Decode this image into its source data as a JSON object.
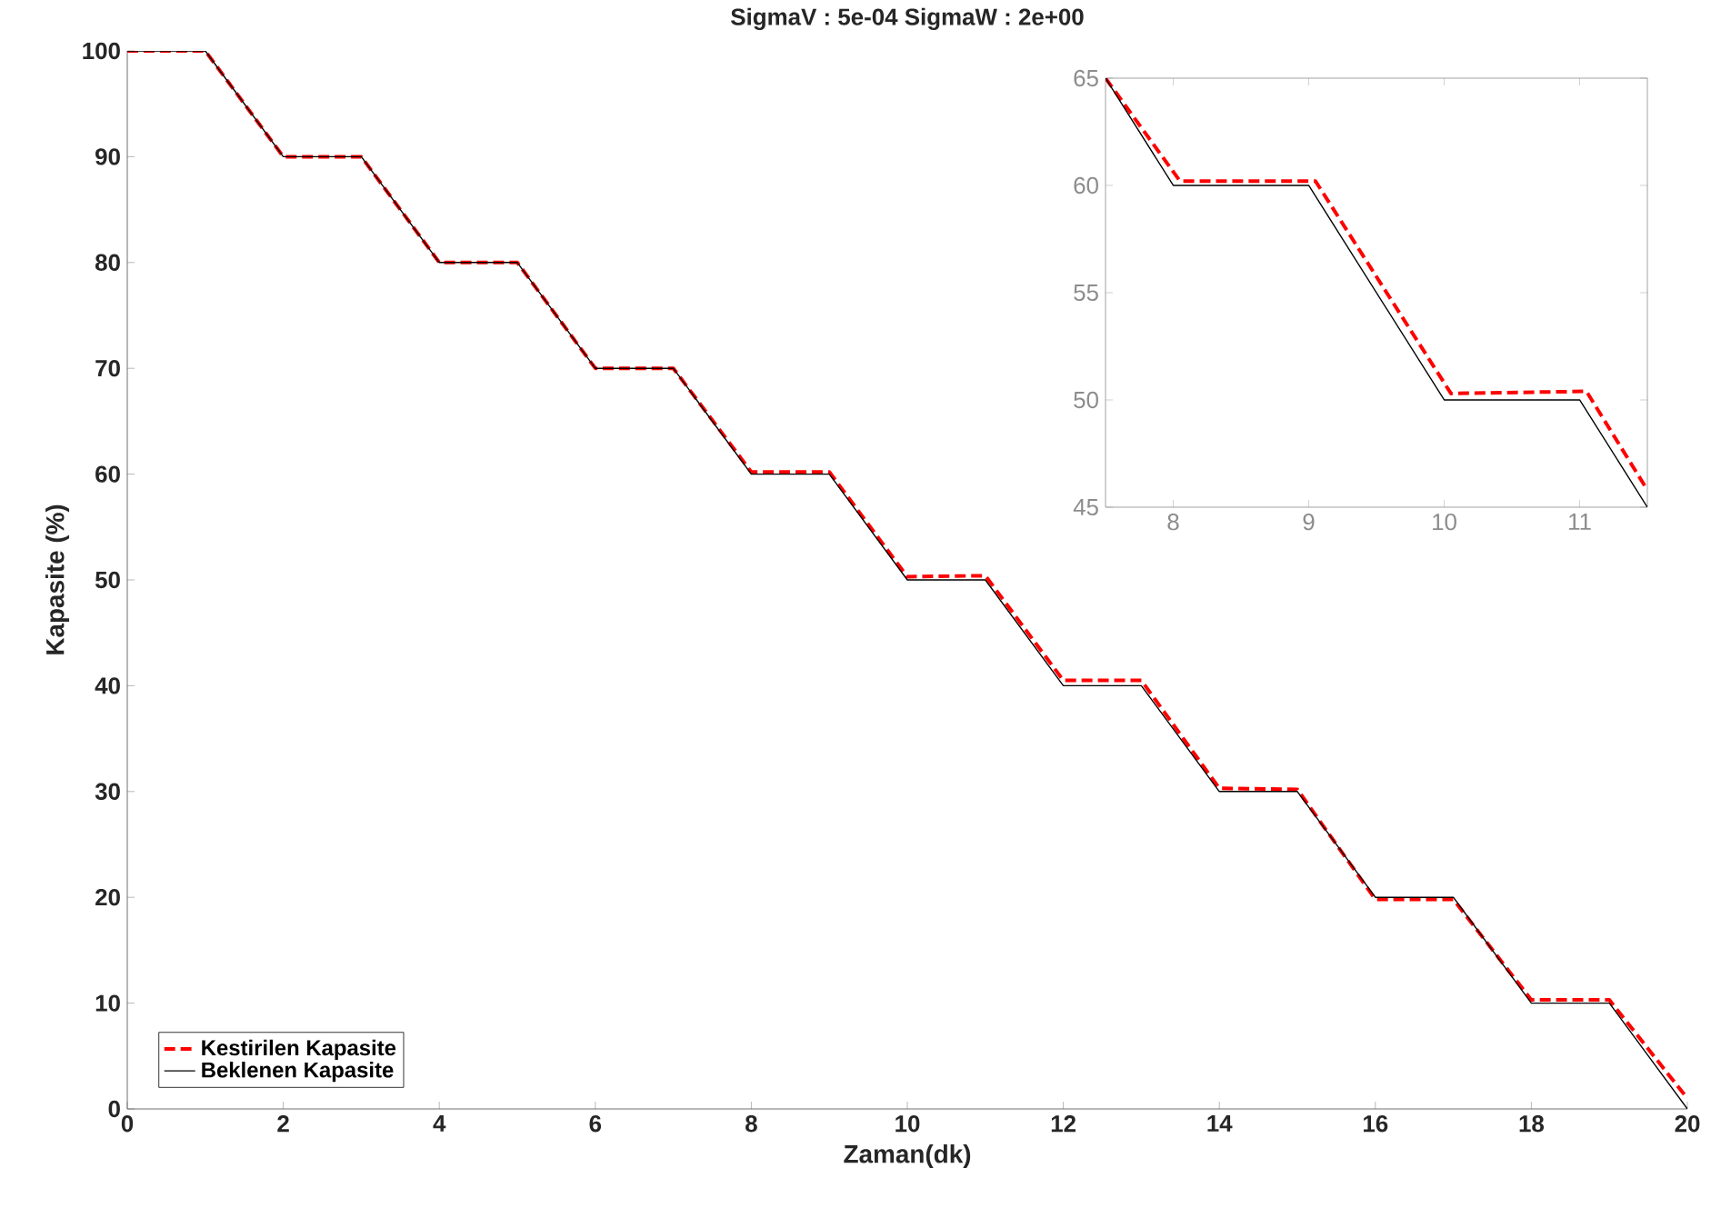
{
  "chart_data": [
    {
      "type": "line",
      "title": "SigmaV : 5e-04   SigmaW : 2e+00",
      "xlabel": "Zaman(dk)",
      "ylabel": "Kapasite (%)",
      "xlim": [
        0,
        20
      ],
      "ylim": [
        0,
        100
      ],
      "xticks": [
        0,
        2,
        4,
        6,
        8,
        10,
        12,
        14,
        16,
        18,
        20
      ],
      "yticks": [
        0,
        10,
        20,
        30,
        40,
        50,
        60,
        70,
        80,
        90,
        100
      ],
      "x": [
        0,
        1,
        2,
        3,
        4,
        5,
        6,
        7,
        8,
        9,
        10,
        11,
        12,
        13,
        14,
        15,
        16,
        17,
        18,
        19,
        20
      ],
      "legend": "bottom left",
      "grid": false,
      "series": [
        {
          "name": "Kestirilen Kapasite",
          "color": "#ff0000",
          "line_style": "dashed",
          "values": [
            100,
            100,
            90,
            90,
            80,
            80,
            70,
            70,
            60.2,
            60.2,
            50.3,
            50.4,
            40.5,
            40.5,
            30.3,
            30.2,
            19.8,
            19.8,
            10.3,
            10.3,
            1
          ]
        },
        {
          "name": "Beklenen Kapasite",
          "color": "#000000",
          "line_style": "solid",
          "values": [
            100,
            100,
            90,
            90,
            80,
            80,
            70,
            70,
            60,
            60,
            50,
            50,
            40,
            40,
            30,
            30,
            20,
            20,
            10,
            10,
            0
          ]
        }
      ]
    },
    {
      "type": "line",
      "xlim": [
        7.5,
        11.5
      ],
      "ylim": [
        45,
        65
      ],
      "xticks": [
        8,
        9,
        10,
        11
      ],
      "yticks": [
        45,
        50,
        55,
        60,
        65
      ],
      "grid": false,
      "series": [
        {
          "color": "#ff0000",
          "line_style": "dashed",
          "x": [
            7.5,
            8.05,
            9.05,
            10.05,
            11.05,
            11.5
          ],
          "values": [
            65,
            60.2,
            60.2,
            50.3,
            50.4,
            45.8
          ]
        },
        {
          "color": "#000000",
          "line_style": "solid",
          "x": [
            7.5,
            8,
            9,
            10,
            11,
            11.5
          ],
          "values": [
            65,
            60,
            60,
            50,
            50,
            45
          ]
        }
      ]
    }
  ]
}
